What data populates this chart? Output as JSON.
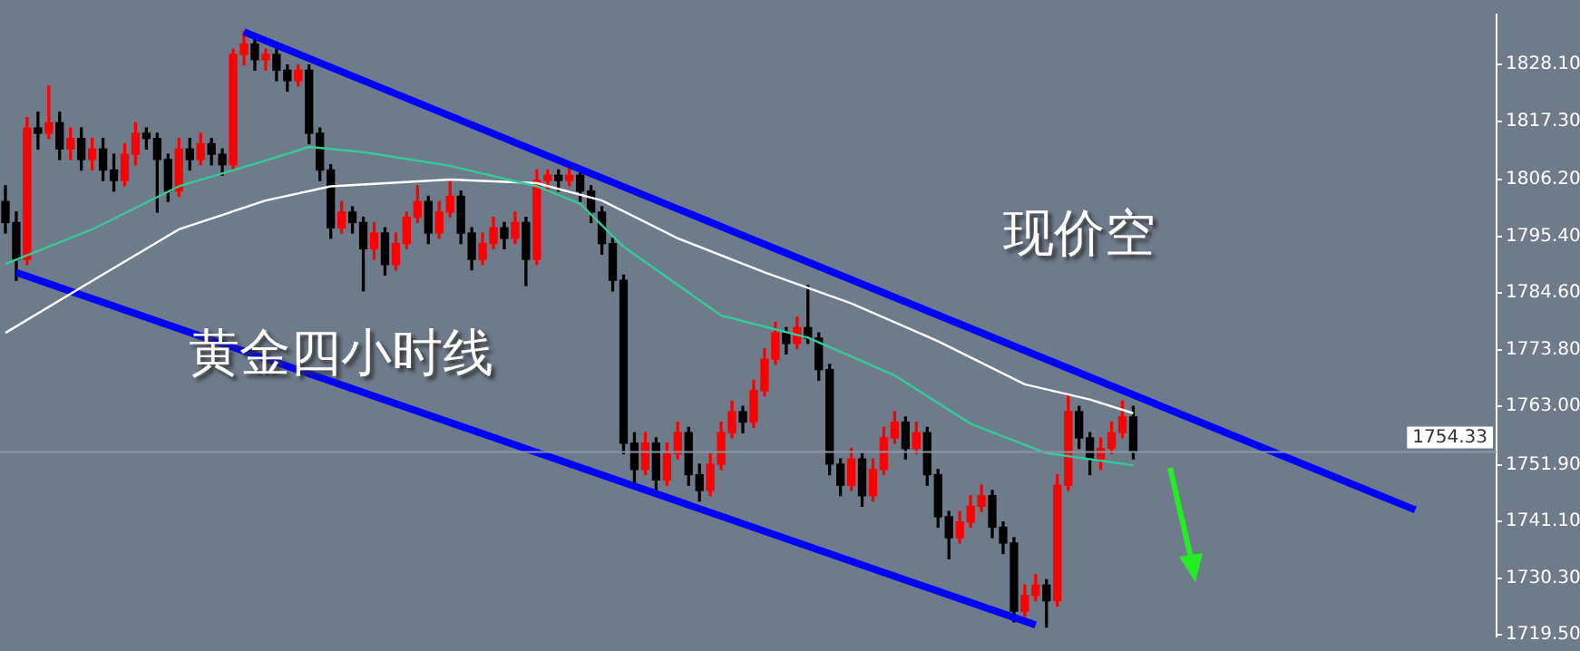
{
  "chart_data": {
    "type": "candlestick",
    "annotations": [
      "现价空",
      "黄金四小时线"
    ],
    "categories": [
      null,
      null,
      null,
      null,
      null,
      null,
      null,
      null,
      null,
      null,
      null,
      null,
      null,
      null,
      null,
      null,
      null,
      null,
      null,
      null,
      null,
      null,
      null,
      null,
      null,
      null,
      null,
      null,
      null,
      null,
      null,
      null,
      null,
      null,
      null,
      null,
      null,
      null,
      null,
      null,
      null,
      null,
      null,
      null,
      null,
      null,
      null,
      null,
      null,
      null,
      null,
      null,
      null,
      null,
      null,
      null,
      null,
      null,
      null,
      null,
      null,
      null,
      null,
      null,
      null,
      null,
      null,
      null,
      null,
      null,
      null,
      null,
      null,
      null,
      null,
      null,
      null,
      null,
      null,
      null,
      null,
      null,
      null,
      null,
      null,
      null,
      null,
      null,
      null,
      null,
      null,
      null,
      null,
      null,
      null,
      null,
      null,
      null,
      null,
      null,
      null,
      null,
      null,
      null,
      null,
      null,
      null,
      null,
      null,
      null,
      null,
      null,
      null,
      null,
      null,
      null,
      null,
      null,
      null,
      null,
      null,
      null,
      null,
      null,
      null,
      null,
      null,
      null,
      null,
      null,
      null,
      null,
      null,
      null,
      null,
      null,
      null,
      null
    ],
    "ohlc": [
      [
        1802,
        1805,
        1796,
        1798
      ],
      [
        1798,
        1800,
        1787,
        1791
      ],
      [
        1791,
        1818,
        1790,
        1816
      ],
      [
        1816,
        1819,
        1812,
        1815
      ],
      [
        1815,
        1824,
        1814,
        1817
      ],
      [
        1817,
        1819,
        1810,
        1812
      ],
      [
        1812,
        1816,
        1810,
        1814
      ],
      [
        1814,
        1816,
        1808,
        1810
      ],
      [
        1810,
        1814,
        1808,
        1812
      ],
      [
        1812,
        1814,
        1806,
        1808
      ],
      [
        1808,
        1811,
        1804,
        1806
      ],
      [
        1806,
        1813,
        1805,
        1811
      ],
      [
        1811,
        1817,
        1809,
        1815
      ],
      [
        1815,
        1816,
        1812,
        1814
      ],
      [
        1814,
        1815,
        1800,
        1810
      ],
      [
        1810,
        1811,
        1802,
        1804
      ],
      [
        1804,
        1814,
        1803,
        1812
      ],
      [
        1812,
        1814,
        1808,
        1810
      ],
      [
        1810,
        1815,
        1809,
        1813
      ],
      [
        1813,
        1814,
        1809,
        1811
      ],
      [
        1811,
        1812,
        1807,
        1809
      ],
      [
        1809,
        1831,
        1808,
        1830
      ],
      [
        1830,
        1834.3,
        1828,
        1832
      ],
      [
        1832,
        1833,
        1827,
        1829
      ],
      [
        1829,
        1831,
        1827,
        1830
      ],
      [
        1830,
        1831,
        1825,
        1827
      ],
      [
        1827,
        1828,
        1823,
        1825
      ],
      [
        1825,
        1828,
        1824,
        1827
      ],
      [
        1827,
        1828,
        1813,
        1815
      ],
      [
        1815,
        1816,
        1806,
        1808
      ],
      [
        1808,
        1809,
        1795,
        1797
      ],
      [
        1797,
        1802,
        1796,
        1800
      ],
      [
        1800,
        1801,
        1796,
        1798
      ],
      [
        1798,
        1799,
        1785,
        1793
      ],
      [
        1793,
        1798,
        1791,
        1796
      ],
      [
        1796,
        1797,
        1788,
        1790
      ],
      [
        1790,
        1796,
        1789,
        1794
      ],
      [
        1794,
        1800,
        1793,
        1799
      ],
      [
        1799,
        1805,
        1798,
        1802
      ],
      [
        1802,
        1803,
        1794,
        1796
      ],
      [
        1796,
        1802,
        1795,
        1800
      ],
      [
        1800,
        1806,
        1799,
        1803
      ],
      [
        1803,
        1804,
        1794,
        1796
      ],
      [
        1796,
        1797,
        1789,
        1791
      ],
      [
        1791,
        1796,
        1790,
        1794
      ],
      [
        1794,
        1799,
        1793,
        1797
      ],
      [
        1797,
        1798,
        1793,
        1795
      ],
      [
        1795,
        1800,
        1794,
        1798
      ],
      [
        1798,
        1799,
        1786,
        1791
      ],
      [
        1791,
        1808,
        1790,
        1806
      ],
      [
        1806,
        1808,
        1804,
        1807
      ],
      [
        1807,
        1808,
        1804,
        1806
      ],
      [
        1806,
        1809,
        1805,
        1807
      ],
      [
        1807,
        1808,
        1802,
        1804
      ],
      [
        1804,
        1805,
        1798,
        1800
      ],
      [
        1800,
        1801,
        1792,
        1794
      ],
      [
        1794,
        1795,
        1785,
        1787
      ],
      [
        1787,
        1788,
        1754,
        1756
      ],
      [
        1756,
        1758,
        1748,
        1751
      ],
      [
        1751,
        1758,
        1750,
        1756
      ],
      [
        1756,
        1757,
        1747,
        1749
      ],
      [
        1749,
        1756,
        1748,
        1754
      ],
      [
        1754,
        1760,
        1753,
        1758
      ],
      [
        1758,
        1759,
        1748,
        1750
      ],
      [
        1750,
        1752,
        1745,
        1747
      ],
      [
        1747,
        1754,
        1746,
        1752
      ],
      [
        1752,
        1760,
        1751,
        1758
      ],
      [
        1758,
        1764,
        1757,
        1762
      ],
      [
        1762,
        1763,
        1758,
        1760
      ],
      [
        1760,
        1768,
        1759,
        1766
      ],
      [
        1766,
        1774,
        1765,
        1772
      ],
      [
        1772,
        1779,
        1771,
        1777
      ],
      [
        1777,
        1778,
        1773,
        1775
      ],
      [
        1775,
        1780,
        1774,
        1778
      ],
      [
        1778,
        1786,
        1775,
        1776
      ],
      [
        1776,
        1777,
        1768,
        1770
      ],
      [
        1770,
        1771,
        1750,
        1752
      ],
      [
        1752,
        1753,
        1746,
        1748
      ],
      [
        1748,
        1755,
        1747,
        1753
      ],
      [
        1753,
        1754,
        1744,
        1746
      ],
      [
        1746,
        1753,
        1745,
        1751
      ],
      [
        1751,
        1759,
        1750,
        1757
      ],
      [
        1757,
        1762,
        1756,
        1760
      ],
      [
        1760,
        1761,
        1753,
        1755
      ],
      [
        1755,
        1760,
        1754,
        1758
      ],
      [
        1758,
        1759,
        1748,
        1750
      ],
      [
        1750,
        1751,
        1740,
        1742
      ],
      [
        1742,
        1743,
        1734,
        1738
      ],
      [
        1738,
        1743,
        1737,
        1741
      ],
      [
        1741,
        1746,
        1740,
        1744
      ],
      [
        1744,
        1748,
        1743,
        1746
      ],
      [
        1746,
        1747,
        1738,
        1740
      ],
      [
        1740,
        1741,
        1735,
        1737
      ],
      [
        1737,
        1738,
        1722,
        1724
      ],
      [
        1724,
        1729,
        1723,
        1727
      ],
      [
        1727,
        1731,
        1726,
        1729
      ],
      [
        1729,
        1730,
        1721,
        1726
      ],
      [
        1726,
        1750,
        1725,
        1748
      ],
      [
        1748,
        1765,
        1747,
        1762
      ],
      [
        1762,
        1763,
        1755,
        1757
      ],
      [
        1757,
        1758,
        1750,
        1753
      ],
      [
        1753,
        1757,
        1751,
        1755
      ],
      [
        1755,
        1760,
        1754,
        1758
      ],
      [
        1758,
        1764,
        1757,
        1761
      ],
      [
        1761,
        1763,
        1753,
        1754.33
      ],
      null,
      null,
      null,
      null,
      null,
      null,
      null,
      null,
      null,
      null,
      null,
      null,
      null,
      null,
      null,
      null,
      null,
      null,
      null,
      null,
      null,
      null,
      null,
      null,
      null,
      null,
      null,
      null,
      null,
      null,
      null,
      null,
      null
    ],
    "series": [
      {
        "type": "line",
        "color": "#33cc99",
        "values": [
          1790.1,
          null,
          null,
          null,
          null,
          null,
          null,
          null,
          1796.7,
          null,
          null,
          null,
          null,
          null,
          null,
          null,
          1804.9,
          null,
          null,
          null,
          null,
          null,
          null,
          null,
          1809.8,
          null,
          null,
          null,
          1812.4,
          null,
          null,
          null,
          null,
          1811.4,
          null,
          null,
          null,
          null,
          null,
          null,
          null,
          1808.8,
          null,
          null,
          null,
          null,
          null,
          null,
          null,
          1804.9,
          null,
          null,
          null,
          1801.6,
          null,
          null,
          null,
          1793.4,
          null,
          null,
          null,
          null,
          null,
          null,
          null,
          null,
          1780.3,
          null,
          null,
          null,
          null,
          null,
          null,
          null,
          1776.1,
          null,
          null,
          null,
          null,
          null,
          null,
          null,
          1768.9,
          null,
          null,
          null,
          null,
          null,
          null,
          1759.7,
          null,
          null,
          null,
          null,
          null,
          null,
          1754.1,
          null,
          null,
          null,
          null,
          null,
          null,
          null,
          1751.8,
          null,
          null,
          null,
          null,
          null,
          null,
          null,
          null,
          null,
          null,
          null,
          null,
          null,
          null,
          null,
          null,
          null,
          null,
          null,
          null,
          null,
          null,
          null,
          null,
          null,
          null,
          null,
          null,
          null,
          null,
          null,
          null,
          null
        ]
      },
      {
        "type": "line",
        "color": "#ffffff",
        "values": [
          1777.0,
          null,
          null,
          null,
          null,
          null,
          null,
          null,
          1786.9,
          null,
          null,
          null,
          null,
          null,
          null,
          null,
          1796.7,
          null,
          null,
          null,
          null,
          null,
          null,
          null,
          1802.2,
          null,
          null,
          null,
          null,
          null,
          1804.9,
          null,
          null,
          null,
          null,
          null,
          null,
          null,
          null,
          null,
          null,
          1806.2,
          null,
          null,
          null,
          null,
          null,
          null,
          null,
          1805.5,
          null,
          null,
          null,
          null,
          null,
          1802.2,
          null,
          null,
          null,
          null,
          null,
          null,
          1795.0,
          null,
          null,
          null,
          null,
          null,
          null,
          null,
          1788.5,
          null,
          null,
          null,
          null,
          null,
          null,
          null,
          1782.6,
          null,
          null,
          null,
          null,
          null,
          null,
          null,
          1775.4,
          null,
          null,
          null,
          null,
          null,
          null,
          null,
          1767.2,
          null,
          null,
          null,
          null,
          null,
          1764.3,
          null,
          null,
          null,
          1761.7,
          null,
          null,
          null,
          null,
          null,
          null,
          null,
          null,
          null,
          null,
          null,
          null,
          null,
          null,
          null,
          null,
          null,
          null,
          null,
          null,
          null,
          null,
          null,
          null,
          null,
          null,
          null,
          null,
          null,
          null,
          null,
          null,
          null
        ]
      },
      {
        "type": "line",
        "color": "#0000ff",
        "values": [
          null,
          null,
          null,
          null,
          null,
          null,
          null,
          null,
          null,
          null,
          null,
          null,
          null,
          null,
          null,
          null,
          null,
          null,
          null,
          null,
          null,
          null,
          1834.3,
          null,
          null,
          null,
          null,
          null,
          null,
          null,
          null,
          null,
          null,
          null,
          null,
          null,
          null,
          null,
          null,
          null,
          null,
          null,
          null,
          null,
          null,
          null,
          null,
          null,
          null,
          null,
          null,
          null,
          null,
          null,
          null,
          null,
          null,
          null,
          null,
          null,
          null,
          null,
          null,
          null,
          null,
          null,
          null,
          null,
          null,
          null,
          null,
          null,
          null,
          null,
          null,
          null,
          null,
          null,
          null,
          null,
          null,
          null,
          null,
          null,
          null,
          null,
          null,
          null,
          null,
          null,
          null,
          null,
          null,
          null,
          null,
          null,
          null,
          null,
          null,
          null,
          null,
          null,
          null,
          null,
          null,
          null,
          null,
          null,
          null,
          null,
          null,
          null,
          null,
          null,
          null,
          null,
          null,
          null,
          null,
          null,
          null,
          null,
          null,
          null,
          null,
          null,
          null,
          null,
          null,
          null,
          1743.3,
          null,
          null,
          null,
          null,
          null,
          null,
          null
        ]
      },
      {
        "type": "line",
        "color": "#0000ff",
        "values": [
          null,
          1788.5,
          null,
          null,
          null,
          null,
          null,
          null,
          null,
          null,
          null,
          null,
          null,
          null,
          null,
          null,
          null,
          null,
          null,
          null,
          null,
          null,
          null,
          null,
          null,
          null,
          null,
          null,
          null,
          null,
          null,
          null,
          null,
          null,
          null,
          null,
          null,
          null,
          null,
          null,
          null,
          null,
          null,
          null,
          null,
          null,
          null,
          null,
          null,
          null,
          null,
          null,
          null,
          null,
          null,
          null,
          null,
          null,
          null,
          null,
          null,
          null,
          null,
          null,
          null,
          null,
          null,
          null,
          null,
          null,
          null,
          null,
          null,
          null,
          null,
          null,
          null,
          null,
          null,
          null,
          null,
          null,
          null,
          null,
          null,
          null,
          null,
          null,
          null,
          null,
          null,
          null,
          null,
          null,
          null,
          1721.4,
          null,
          null,
          null,
          null,
          null,
          null,
          null,
          null,
          null,
          null,
          null,
          null,
          null,
          null,
          null,
          null,
          null,
          null,
          null,
          null,
          null,
          null,
          null,
          null,
          null,
          null,
          null,
          null,
          null,
          null,
          null,
          null,
          null,
          null,
          null,
          null,
          null,
          null,
          null,
          null,
          null,
          null
        ]
      }
    ],
    "ylim": [
      1719.2,
      1837.6
    ],
    "yticks": [
      {
        "value": 1719.5,
        "label": "1719.50"
      },
      {
        "value": 1730.3,
        "label": "1730.30"
      },
      {
        "value": 1741.1,
        "label": "1741.10"
      },
      {
        "value": 1751.9,
        "label": "1751.90"
      },
      {
        "value": 1763,
        "label": "1763.00"
      },
      {
        "value": 1773.8,
        "label": "1773.80"
      },
      {
        "value": 1784.6,
        "label": "1784.60"
      },
      {
        "value": 1795.4,
        "label": "1795.40"
      },
      {
        "value": 1806.2,
        "label": "1806.20"
      },
      {
        "value": 1817.3,
        "label": "1817.30"
      },
      {
        "value": 1828.1,
        "label": "1828.10"
      }
    ],
    "ref_lines": [
      {
        "axis": "y",
        "value": 1754.33,
        "label": "1754.33",
        "color": "#8a96a6"
      }
    ]
  }
}
